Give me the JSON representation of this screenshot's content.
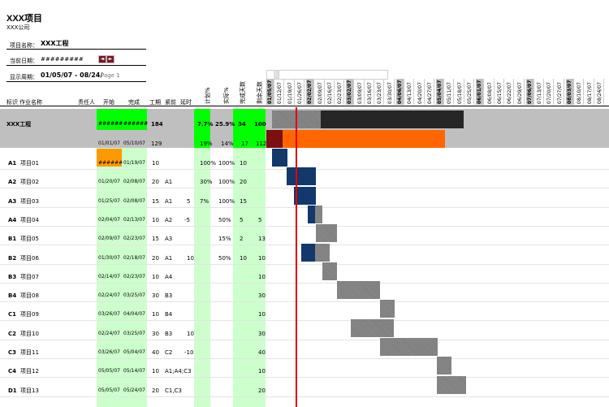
{
  "header": {
    "title": "XXX项目",
    "company": "XXX公司"
  },
  "info": {
    "project_label": "项目名称：",
    "project_value": "XXX工程",
    "date_label": "当前日期：",
    "date_value": "#########",
    "period_label": "显示周期：",
    "period_value": "01/05/07 - 08/24/",
    "page": "Page 1"
  },
  "nav": {
    "prev": "◄",
    "next": "►"
  },
  "columns": {
    "id": "标识",
    "name": "作业名称",
    "owner": "责任人",
    "start": "开始",
    "finish": "完成",
    "duration": "工期",
    "pred": "紧前",
    "lag": "延时",
    "planned": "计划%",
    "actual": "实际%",
    "days_done": "完成天数",
    "days_left": "剩余天数"
  },
  "timeline_dates": [
    "01/05/07",
    "01/12/07",
    "01/19/07",
    "01/26/07",
    "02/02/07",
    "02/09/07",
    "02/16/07",
    "02/23/07",
    "03/02/07",
    "03/09/07",
    "03/16/07",
    "03/23/07",
    "03/30/07",
    "04/06/07",
    "04/13/07",
    "04/20/07",
    "04/27/07",
    "05/04/07",
    "05/11/07",
    "05/18/07",
    "05/25/07",
    "06/01/07",
    "06/08/07",
    "06/15/07",
    "06/22/07",
    "06/29/07",
    "07/06/07",
    "07/13/07",
    "07/20/07",
    "07/27/07",
    "08/03/07",
    "08/10/07",
    "08/17/07",
    "08/24/07"
  ],
  "summary": {
    "name": "XXX工程",
    "start": "######",
    "finish": "######",
    "duration": "184",
    "planned": "7.7%",
    "actual": "25.9%",
    "days_done": "34",
    "days_left": "100",
    "start2": "01/01/07",
    "finish2": "05/10/07",
    "duration2": "129",
    "planned2": "19%",
    "actual2": "14%",
    "days_done2": "17",
    "days_left2": "112"
  },
  "tasks": [
    {
      "id": "A1",
      "name": "项目01",
      "start": "######",
      "finish": "01/19/07",
      "duration": "10",
      "pred": "",
      "lag": "",
      "planned": "100%",
      "actual": "100%",
      "done": "10",
      "left": ""
    },
    {
      "id": "A2",
      "name": "项目02",
      "start": "01/20/07",
      "finish": "02/08/07",
      "duration": "20",
      "pred": "A1",
      "lag": "",
      "planned": "30%",
      "actual": "100%",
      "done": "20",
      "left": ""
    },
    {
      "id": "A3",
      "name": "项目03",
      "start": "01/25/07",
      "finish": "02/08/07",
      "duration": "15",
      "pred": "A1",
      "lag": "5",
      "planned": "7%",
      "actual": "100%",
      "done": "15",
      "left": ""
    },
    {
      "id": "A4",
      "name": "项目04",
      "start": "02/04/07",
      "finish": "02/13/07",
      "duration": "10",
      "pred": "A2",
      "lag": "-5",
      "planned": "",
      "actual": "50%",
      "done": "5",
      "left": "5"
    },
    {
      "id": "B1",
      "name": "项目05",
      "start": "02/09/07",
      "finish": "02/23/07",
      "duration": "15",
      "pred": "A3",
      "lag": "",
      "planned": "",
      "actual": "15%",
      "done": "2",
      "left": "13"
    },
    {
      "id": "B2",
      "name": "项目06",
      "start": "01/30/07",
      "finish": "02/18/07",
      "duration": "20",
      "pred": "A1",
      "lag": "10",
      "planned": "",
      "actual": "50%",
      "done": "10",
      "left": "10"
    },
    {
      "id": "B3",
      "name": "项目07",
      "start": "02/14/07",
      "finish": "02/23/07",
      "duration": "10",
      "pred": "A4",
      "lag": "",
      "planned": "",
      "actual": "",
      "done": "",
      "left": "10"
    },
    {
      "id": "B4",
      "name": "项目08",
      "start": "02/24/07",
      "finish": "03/25/07",
      "duration": "30",
      "pred": "B3",
      "lag": "",
      "planned": "",
      "actual": "",
      "done": "",
      "left": "30"
    },
    {
      "id": "C1",
      "name": "项目09",
      "start": "03/26/07",
      "finish": "04/04/07",
      "duration": "10",
      "pred": "B4",
      "lag": "",
      "planned": "",
      "actual": "",
      "done": "",
      "left": "10"
    },
    {
      "id": "C2",
      "name": "项目10",
      "start": "02/24/07",
      "finish": "03/25/07",
      "duration": "30",
      "pred": "B3",
      "lag": "10",
      "planned": "",
      "actual": "",
      "done": "",
      "left": "30"
    },
    {
      "id": "C3",
      "name": "项目11",
      "start": "03/26/07",
      "finish": "05/04/07",
      "duration": "40",
      "pred": "C2",
      "lag": "-10",
      "planned": "",
      "actual": "",
      "done": "",
      "left": "40"
    },
    {
      "id": "C4",
      "name": "项目12",
      "start": "05/05/07",
      "finish": "05/14/07",
      "duration": "10",
      "pred": "A1;A4;C3",
      "lag": "",
      "planned": "",
      "actual": "",
      "done": "",
      "left": "10"
    },
    {
      "id": "D1",
      "name": "项目13",
      "start": "05/05/07",
      "finish": "05/24/07",
      "duration": "20",
      "pred": "C1,C3",
      "lag": "",
      "planned": "",
      "actual": "",
      "done": "",
      "left": "20"
    }
  ],
  "colors": {
    "green": "#00ff00",
    "light_green": "#ccffcc",
    "orange": "#ff6600",
    "orange_cell": "#ff9900",
    "dark_bar": "#262626",
    "blue_bar": "#13386b",
    "today_line": "#e30000"
  }
}
